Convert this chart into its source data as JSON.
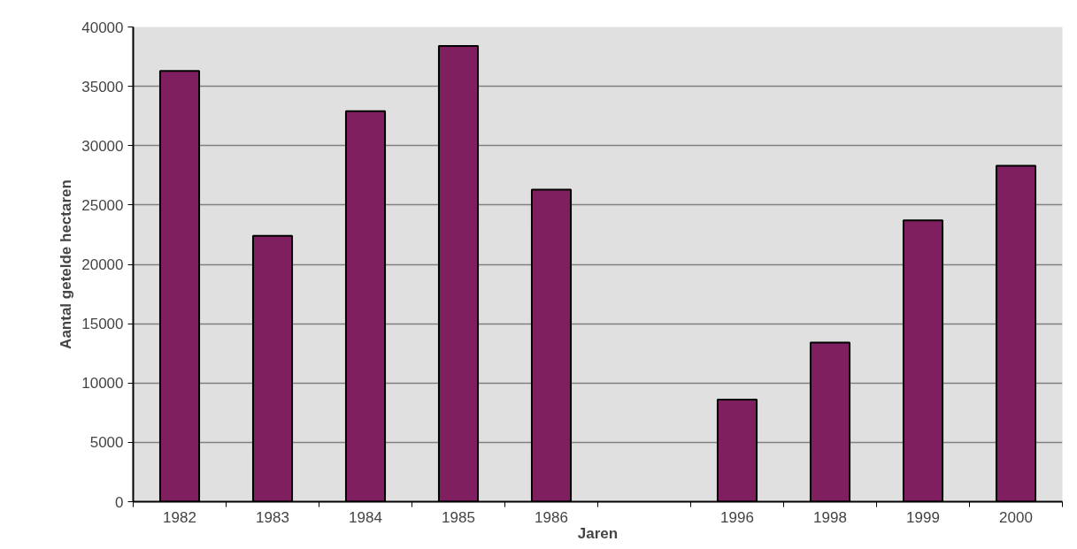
{
  "chart_data": {
    "type": "bar",
    "xlabel": "Jaren",
    "ylabel": "Aantal getelde hectaren",
    "categories": [
      "1982",
      "1983",
      "1984",
      "1985",
      "1986",
      null,
      "1996",
      "1998",
      "1999",
      "2000"
    ],
    "values": [
      36300,
      22400,
      32900,
      38400,
      26300,
      null,
      8600,
      13400,
      23700,
      28300
    ],
    "color": "#7f1f5f",
    "ylim": [
      0,
      40000
    ],
    "yticks": [
      0,
      5000,
      10000,
      15000,
      20000,
      25000,
      30000,
      35000,
      40000
    ],
    "grid": "y"
  }
}
